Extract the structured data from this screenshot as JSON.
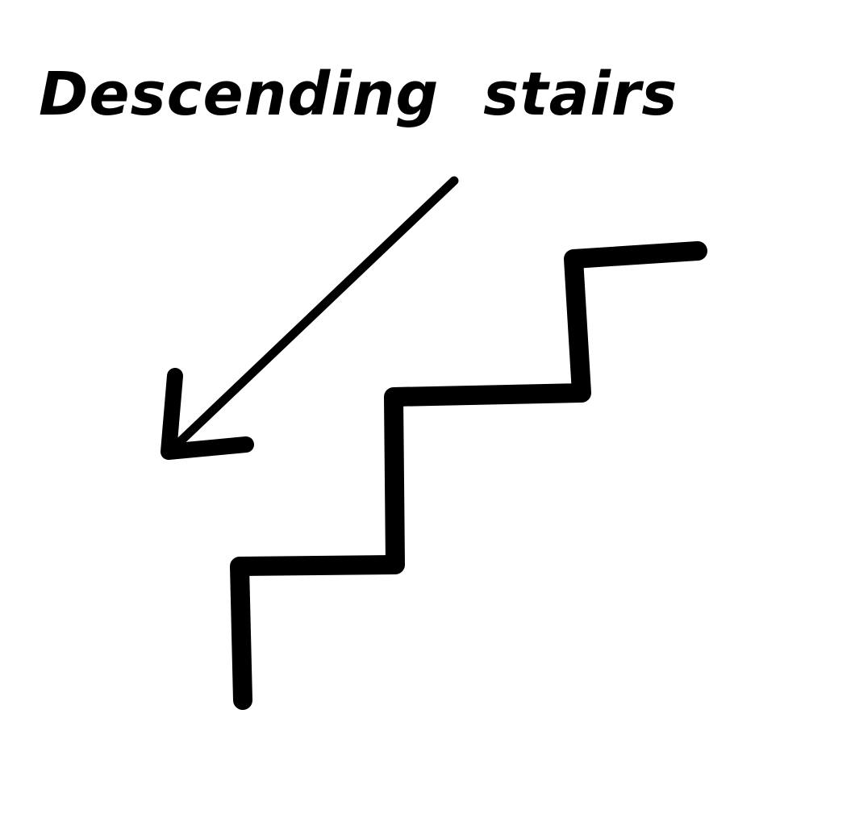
{
  "caption": "Descending stairs",
  "ink_color": "#000000",
  "background_color": "#ffffff",
  "icons": {
    "direction": "down-left-arrow-icon",
    "subject": "staircase-icon"
  }
}
